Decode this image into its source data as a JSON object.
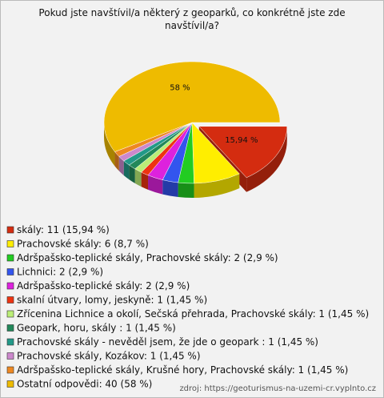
{
  "chart_data": {
    "type": "pie",
    "title": "Pokud jste navštívil/a některý z geoparků, co konkrétně jste zde navštívil/a?",
    "categories": [
      "skály: 11 (15,94 %)",
      "Prachovské skály: 6 (8,7 %)",
      "Adršpašsko-teplické skály, Prachovské skály: 2 (2,9 %)",
      "Lichnici: 2 (2,9 %)",
      "Adršpašsko-teplické skály: 2 (2,9 %)",
      "skalní útvary, lomy, jeskyně: 1 (1,45 %)",
      "Zřícenina Lichnice a okolí, Sečská přehrada, Prachovské skály: 1 (1,45 %)",
      "Geopark, horu, skály : 1 (1,45 %)",
      "Prachovské skály - nevěděl jsem, že jde o geopark : 1 (1,45 %)",
      "Prachovské skály, Kozákov: 1 (1,45 %)",
      "Adršpašsko-teplické skály, Krušné hory, Prachovské skály: 1 (1,45 %)",
      "Ostatní odpovědi: 40 (58 %)"
    ],
    "values": [
      15.94,
      8.7,
      2.9,
      2.9,
      2.9,
      1.45,
      1.45,
      1.45,
      1.45,
      1.45,
      1.45,
      58
    ],
    "value_labels": [
      "15,94 %",
      null,
      null,
      null,
      null,
      null,
      null,
      null,
      null,
      null,
      null,
      "58 %"
    ],
    "colors": [
      "#d42c10",
      "#ffee00",
      "#22cc22",
      "#3355ee",
      "#dd22dd",
      "#ee3311",
      "#bbee77",
      "#22885a",
      "#229988",
      "#cc88cc",
      "#ee8822",
      "#eebb00"
    ],
    "source": "zdroj: https://geoturismus-na-uzemi-cr.vyplnto.cz"
  }
}
